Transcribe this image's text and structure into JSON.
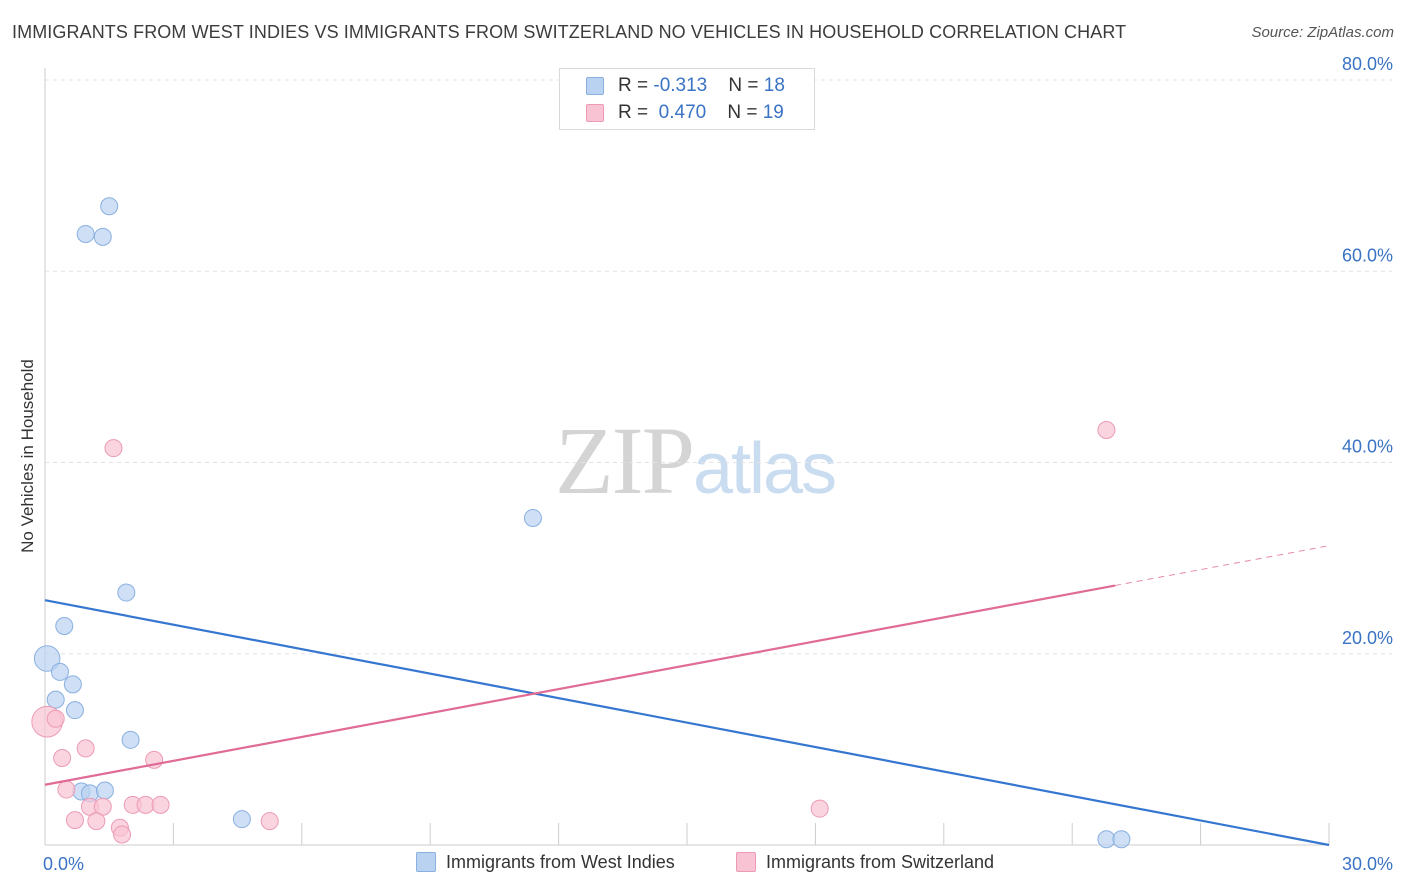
{
  "title": "IMMIGRANTS FROM WEST INDIES VS IMMIGRANTS FROM SWITZERLAND NO VEHICLES IN HOUSEHOLD CORRELATION CHART",
  "source": "Source: ZipAtlas.com",
  "watermark": {
    "zip": "ZIP",
    "atlas": "atlas"
  },
  "legend": {
    "rows": [
      {
        "r_label": "R = ",
        "r_value": "-0.313",
        "n_label": "N = ",
        "n_value": "18"
      },
      {
        "r_label": "R = ",
        "r_value": "0.470",
        "n_label": "N = ",
        "n_value": "19"
      }
    ]
  },
  "colors": {
    "blue_fill": "#b9d2f2",
    "blue_stroke": "#8ab0e0",
    "blue_line": "#3577d0",
    "pink_fill": "#f8c3d3",
    "pink_stroke": "#ec9ab5",
    "pink_line": "#e06b96",
    "grid": "#e3e3e3",
    "tick_label": "#3a73c4"
  },
  "chart_data": {
    "type": "scatter",
    "xlabel": "",
    "ylabel": "No Vehicles in Household",
    "xlim": [
      0,
      30
    ],
    "ylim": [
      0,
      80
    ],
    "x_tick_labels": [
      "0.0%",
      "30.0%"
    ],
    "y_ticks": [
      20,
      40,
      60,
      80
    ],
    "y_tick_labels": [
      "20.0%",
      "40.0%",
      "60.0%",
      "80.0%"
    ],
    "series": [
      {
        "name": "Immigrants from West Indies",
        "color": "blue",
        "r": -0.313,
        "n": 18,
        "points": [
          {
            "x": 1.5,
            "y": 66.8,
            "s": 1
          },
          {
            "x": 0.95,
            "y": 63.9,
            "s": 1
          },
          {
            "x": 1.35,
            "y": 63.6,
            "s": 1
          },
          {
            "x": 11.4,
            "y": 34.2,
            "s": 1
          },
          {
            "x": 1.9,
            "y": 26.4,
            "s": 1
          },
          {
            "x": 0.45,
            "y": 22.9,
            "s": 1
          },
          {
            "x": 0.05,
            "y": 19.5,
            "s": 1.5
          },
          {
            "x": 0.35,
            "y": 18.1,
            "s": 1
          },
          {
            "x": 0.65,
            "y": 16.8,
            "s": 1
          },
          {
            "x": 0.25,
            "y": 15.2,
            "s": 1
          },
          {
            "x": 0.7,
            "y": 14.1,
            "s": 1
          },
          {
            "x": 2.0,
            "y": 11.0,
            "s": 1
          },
          {
            "x": 0.85,
            "y": 5.6,
            "s": 1
          },
          {
            "x": 1.05,
            "y": 5.4,
            "s": 1
          },
          {
            "x": 1.4,
            "y": 5.7,
            "s": 1
          },
          {
            "x": 4.6,
            "y": 2.7,
            "s": 1
          },
          {
            "x": 24.8,
            "y": 0.6,
            "s": 1
          },
          {
            "x": 25.15,
            "y": 0.6,
            "s": 1
          }
        ],
        "trend": {
          "x0": 0,
          "y0": 25.6,
          "x1": 30,
          "y1": 0,
          "dash_from": null
        }
      },
      {
        "name": "Immigrants from Switzerland",
        "color": "pink",
        "r": 0.47,
        "n": 19,
        "points": [
          {
            "x": 24.8,
            "y": 43.4,
            "s": 1
          },
          {
            "x": 1.6,
            "y": 41.5,
            "s": 1
          },
          {
            "x": 0.05,
            "y": 12.9,
            "s": 1.8
          },
          {
            "x": 0.25,
            "y": 13.2,
            "s": 1
          },
          {
            "x": 0.95,
            "y": 10.1,
            "s": 1
          },
          {
            "x": 0.4,
            "y": 9.1,
            "s": 1
          },
          {
            "x": 2.55,
            "y": 8.9,
            "s": 1
          },
          {
            "x": 0.5,
            "y": 5.8,
            "s": 1
          },
          {
            "x": 1.05,
            "y": 4.0,
            "s": 1
          },
          {
            "x": 1.35,
            "y": 4.0,
            "s": 1
          },
          {
            "x": 2.05,
            "y": 4.2,
            "s": 1
          },
          {
            "x": 2.35,
            "y": 4.2,
            "s": 1
          },
          {
            "x": 2.7,
            "y": 4.2,
            "s": 1
          },
          {
            "x": 18.1,
            "y": 3.8,
            "s": 1
          },
          {
            "x": 0.7,
            "y": 2.6,
            "s": 1
          },
          {
            "x": 1.2,
            "y": 2.5,
            "s": 1
          },
          {
            "x": 1.75,
            "y": 1.8,
            "s": 1
          },
          {
            "x": 1.8,
            "y": 1.1,
            "s": 1
          },
          {
            "x": 5.25,
            "y": 2.5,
            "s": 1
          }
        ],
        "trend": {
          "x0": 0,
          "y0": 6.3,
          "x1": 30,
          "y1": 31.3,
          "dash_from": 25.0
        }
      }
    ]
  },
  "bottom_legend": [
    {
      "label": "Immigrants from West Indies"
    },
    {
      "label": "Immigrants from Switzerland"
    }
  ]
}
